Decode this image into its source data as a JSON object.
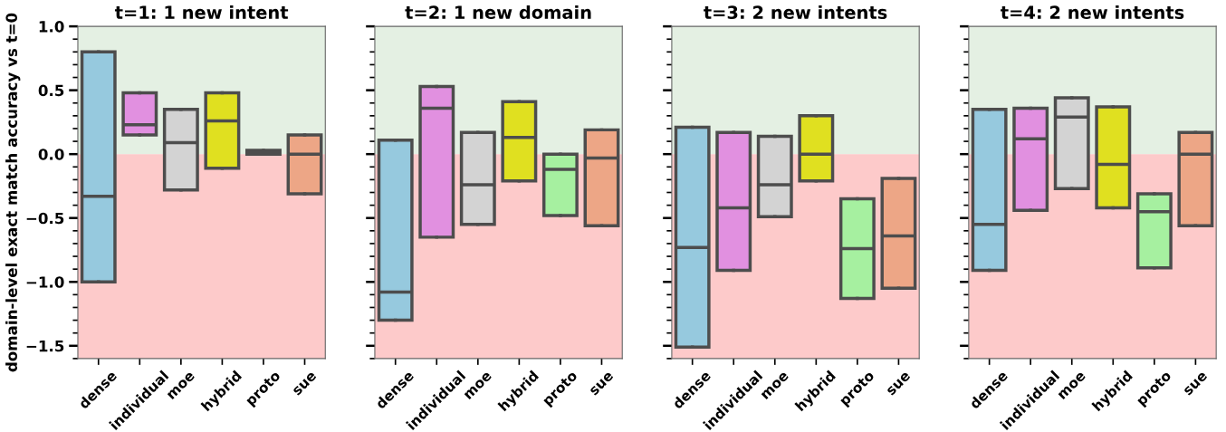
{
  "chart_data": [
    {
      "type": "box",
      "title": "t=1: 1 new intent",
      "ylabel": "domain-level exact match accuracy vs t=0",
      "categories": [
        "dense",
        "individual",
        "moe",
        "hybrid",
        "proto",
        "sue"
      ],
      "colors": [
        "#96c9de",
        "#e190e0",
        "#d3d3d3",
        "#e0e020",
        "#a6f0a0",
        "#eda686"
      ],
      "boxes": [
        {
          "low": -1.0,
          "q1": -1.0,
          "median": -0.33,
          "q3": 0.8,
          "high": 0.8
        },
        {
          "low": 0.15,
          "q1": 0.15,
          "median": 0.23,
          "q3": 0.48,
          "high": 0.48
        },
        {
          "low": -0.28,
          "q1": -0.28,
          "median": 0.09,
          "q3": 0.35,
          "high": 0.35
        },
        {
          "low": -0.11,
          "q1": -0.11,
          "median": 0.26,
          "q3": 0.48,
          "high": 0.48
        },
        {
          "low": 0.0,
          "q1": 0.0,
          "median": 0.02,
          "q3": 0.03,
          "high": 0.03
        },
        {
          "low": -0.31,
          "q1": -0.31,
          "median": 0.0,
          "q3": 0.15,
          "high": 0.15
        }
      ],
      "ylim": [
        -1.6,
        1.0
      ],
      "yticks": [
        {
          "value": -1.5,
          "label": "−1.5"
        },
        {
          "value": -1.0,
          "label": "−1.0"
        },
        {
          "value": -0.5,
          "label": "−0.5"
        },
        {
          "value": 0.0,
          "label": "0.0"
        },
        {
          "value": 0.5,
          "label": "0.5"
        },
        {
          "value": 1.0,
          "label": "1.0"
        }
      ],
      "bands": [
        {
          "axis": "y",
          "from": 0.0,
          "to": 1.0,
          "color": "#e4f0e3"
        },
        {
          "axis": "y",
          "from": -1.6,
          "to": 0.0,
          "color": "#fdcaca"
        }
      ],
      "grid": false
    },
    {
      "type": "box",
      "title": "t=2: 1 new domain",
      "categories": [
        "dense",
        "individual",
        "moe",
        "hybrid",
        "proto",
        "sue"
      ],
      "colors": [
        "#96c9de",
        "#e190e0",
        "#d3d3d3",
        "#e0e020",
        "#a6f0a0",
        "#eda686"
      ],
      "boxes": [
        {
          "low": -1.3,
          "q1": -1.3,
          "median": -1.08,
          "q3": 0.11,
          "high": 0.11
        },
        {
          "low": -0.65,
          "q1": -0.65,
          "median": 0.36,
          "q3": 0.53,
          "high": 0.53
        },
        {
          "low": -0.55,
          "q1": -0.55,
          "median": -0.24,
          "q3": 0.17,
          "high": 0.17
        },
        {
          "low": -0.21,
          "q1": -0.21,
          "median": 0.13,
          "q3": 0.41,
          "high": 0.41
        },
        {
          "low": -0.48,
          "q1": -0.48,
          "median": -0.12,
          "q3": 0.0,
          "high": 0.0
        },
        {
          "low": -0.56,
          "q1": -0.56,
          "median": -0.03,
          "q3": 0.19,
          "high": 0.19
        }
      ],
      "ylim": [
        -1.6,
        1.0
      ],
      "yticks": [
        {
          "value": -1.5,
          "label": null
        },
        {
          "value": -1.0,
          "label": null
        },
        {
          "value": -0.5,
          "label": null
        },
        {
          "value": 0.0,
          "label": null
        },
        {
          "value": 0.5,
          "label": null
        },
        {
          "value": 1.0,
          "label": null
        }
      ],
      "bands": [
        {
          "axis": "y",
          "from": 0.0,
          "to": 1.0,
          "color": "#e4f0e3"
        },
        {
          "axis": "y",
          "from": -1.6,
          "to": 0.0,
          "color": "#fdcaca"
        }
      ],
      "grid": false,
      "tick_labels": "x"
    },
    {
      "type": "box",
      "title": "t=3: 2 new intents",
      "categories": [
        "dense",
        "individual",
        "moe",
        "hybrid",
        "proto",
        "sue"
      ],
      "colors": [
        "#96c9de",
        "#e190e0",
        "#d3d3d3",
        "#e0e020",
        "#a6f0a0",
        "#eda686"
      ],
      "boxes": [
        {
          "low": -1.51,
          "q1": -1.51,
          "median": -0.73,
          "q3": 0.21,
          "high": 0.21
        },
        {
          "low": -0.91,
          "q1": -0.91,
          "median": -0.42,
          "q3": 0.17,
          "high": 0.17
        },
        {
          "low": -0.49,
          "q1": -0.49,
          "median": -0.24,
          "q3": 0.14,
          "high": 0.14
        },
        {
          "low": -0.21,
          "q1": -0.21,
          "median": 0.0,
          "q3": 0.3,
          "high": 0.3
        },
        {
          "low": -1.13,
          "q1": -1.13,
          "median": -0.74,
          "q3": -0.35,
          "high": -0.35
        },
        {
          "low": -1.05,
          "q1": -1.05,
          "median": -0.64,
          "q3": -0.19,
          "high": -0.19
        }
      ],
      "ylim": [
        -1.6,
        1.0
      ],
      "yticks": [
        {
          "value": -1.5,
          "label": null
        },
        {
          "value": -1.0,
          "label": null
        },
        {
          "value": -0.5,
          "label": null
        },
        {
          "value": 0.0,
          "label": null
        },
        {
          "value": 0.5,
          "label": null
        },
        {
          "value": 1.0,
          "label": null
        }
      ],
      "bands": [
        {
          "axis": "y",
          "from": 0.0,
          "to": 1.0,
          "color": "#e4f0e3"
        },
        {
          "axis": "y",
          "from": -1.6,
          "to": 0.0,
          "color": "#fdcaca"
        }
      ],
      "grid": false,
      "tick_labels": "x"
    },
    {
      "type": "box",
      "title": "t=4: 2 new intents",
      "categories": [
        "dense",
        "individual",
        "moe",
        "hybrid",
        "proto",
        "sue"
      ],
      "colors": [
        "#96c9de",
        "#e190e0",
        "#d3d3d3",
        "#e0e020",
        "#a6f0a0",
        "#eda686"
      ],
      "boxes": [
        {
          "low": -0.91,
          "q1": -0.91,
          "median": -0.55,
          "q3": 0.35,
          "high": 0.35
        },
        {
          "low": -0.44,
          "q1": -0.44,
          "median": 0.12,
          "q3": 0.36,
          "high": 0.36
        },
        {
          "low": -0.27,
          "q1": -0.27,
          "median": 0.29,
          "q3": 0.44,
          "high": 0.44
        },
        {
          "low": -0.42,
          "q1": -0.42,
          "median": -0.08,
          "q3": 0.37,
          "high": 0.37
        },
        {
          "low": -0.89,
          "q1": -0.89,
          "median": -0.45,
          "q3": -0.31,
          "high": -0.31
        },
        {
          "low": -0.56,
          "q1": -0.56,
          "median": 0.0,
          "q3": 0.17,
          "high": 0.17
        }
      ],
      "ylim": [
        -1.6,
        1.0
      ],
      "yticks": [
        {
          "value": -1.5,
          "label": null
        },
        {
          "value": -1.0,
          "label": null
        },
        {
          "value": -0.5,
          "label": null
        },
        {
          "value": 0.0,
          "label": null
        },
        {
          "value": 0.5,
          "label": null
        },
        {
          "value": 1.0,
          "label": null
        }
      ],
      "bands": [
        {
          "axis": "y",
          "from": 0.0,
          "to": 1.0,
          "color": "#e4f0e3"
        },
        {
          "axis": "y",
          "from": -1.6,
          "to": 0.0,
          "color": "#fdcaca"
        }
      ],
      "grid": false,
      "tick_labels": "x"
    }
  ]
}
